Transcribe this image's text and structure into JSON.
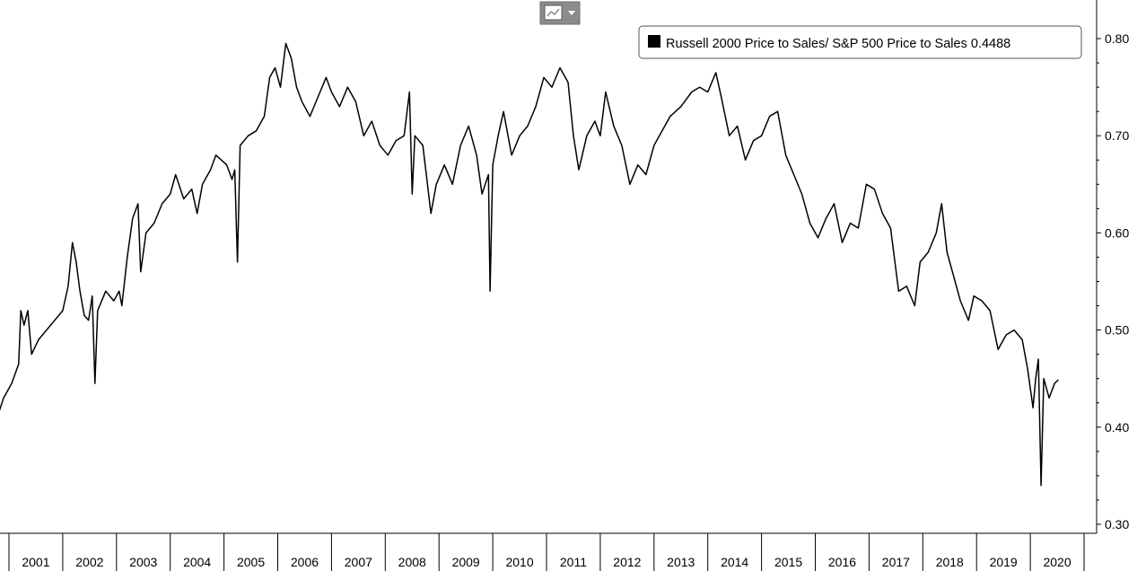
{
  "toolbar": {
    "chart_type_icon": "line-chart-icon",
    "dropdown_icon": "caret-down-icon"
  },
  "legend": {
    "label": "Russell 2000 Price to Sales/ S&P 500 Price to Sales",
    "last_value": "0.4488",
    "swatch_color": "#000000"
  },
  "chart_data": {
    "type": "line",
    "title": "",
    "xlabel": "",
    "ylabel": "",
    "x_tick_labels": [
      "2001",
      "2002",
      "2003",
      "2004",
      "2005",
      "2006",
      "2007",
      "2008",
      "2009",
      "2010",
      "2011",
      "2012",
      "2013",
      "2014",
      "2015",
      "2016",
      "2017",
      "2018",
      "2019",
      "2020"
    ],
    "y_tick_labels": [
      "0.30",
      "0.40",
      "0.50",
      "0.60",
      "0.70",
      "0.80"
    ],
    "ylim": [
      0.3,
      0.83
    ],
    "xlim": [
      2000.6,
      2020.8
    ],
    "grid": false,
    "legend_position": "top-right",
    "series": [
      {
        "name": "Russell 2000 Price to Sales/ S&P 500 Price to Sales",
        "color": "#000000",
        "points": [
          [
            2000.6,
            0.395
          ],
          [
            2000.68,
            0.385
          ],
          [
            2000.78,
            0.41
          ],
          [
            2000.9,
            0.43
          ],
          [
            2001.05,
            0.445
          ],
          [
            2001.18,
            0.465
          ],
          [
            2001.22,
            0.52
          ],
          [
            2001.28,
            0.505
          ],
          [
            2001.35,
            0.52
          ],
          [
            2001.42,
            0.475
          ],
          [
            2001.55,
            0.49
          ],
          [
            2001.7,
            0.5
          ],
          [
            2001.85,
            0.51
          ],
          [
            2002.0,
            0.52
          ],
          [
            2002.1,
            0.545
          ],
          [
            2002.18,
            0.59
          ],
          [
            2002.25,
            0.57
          ],
          [
            2002.32,
            0.54
          ],
          [
            2002.4,
            0.515
          ],
          [
            2002.48,
            0.51
          ],
          [
            2002.55,
            0.535
          ],
          [
            2002.6,
            0.445
          ],
          [
            2002.65,
            0.52
          ],
          [
            2002.8,
            0.54
          ],
          [
            2002.95,
            0.53
          ],
          [
            2003.05,
            0.54
          ],
          [
            2003.1,
            0.525
          ],
          [
            2003.2,
            0.575
          ],
          [
            2003.3,
            0.615
          ],
          [
            2003.4,
            0.63
          ],
          [
            2003.45,
            0.56
          ],
          [
            2003.55,
            0.6
          ],
          [
            2003.7,
            0.61
          ],
          [
            2003.85,
            0.63
          ],
          [
            2004.0,
            0.64
          ],
          [
            2004.1,
            0.66
          ],
          [
            2004.25,
            0.635
          ],
          [
            2004.4,
            0.645
          ],
          [
            2004.5,
            0.62
          ],
          [
            2004.6,
            0.65
          ],
          [
            2004.75,
            0.665
          ],
          [
            2004.85,
            0.68
          ],
          [
            2004.95,
            0.675
          ],
          [
            2005.05,
            0.67
          ],
          [
            2005.15,
            0.655
          ],
          [
            2005.2,
            0.665
          ],
          [
            2005.25,
            0.57
          ],
          [
            2005.3,
            0.69
          ],
          [
            2005.45,
            0.7
          ],
          [
            2005.6,
            0.705
          ],
          [
            2005.75,
            0.72
          ],
          [
            2005.85,
            0.76
          ],
          [
            2005.95,
            0.77
          ],
          [
            2006.05,
            0.75
          ],
          [
            2006.15,
            0.795
          ],
          [
            2006.25,
            0.78
          ],
          [
            2006.35,
            0.75
          ],
          [
            2006.45,
            0.735
          ],
          [
            2006.6,
            0.72
          ],
          [
            2006.75,
            0.74
          ],
          [
            2006.9,
            0.76
          ],
          [
            2007.0,
            0.745
          ],
          [
            2007.15,
            0.73
          ],
          [
            2007.3,
            0.75
          ],
          [
            2007.45,
            0.735
          ],
          [
            2007.6,
            0.7
          ],
          [
            2007.75,
            0.715
          ],
          [
            2007.9,
            0.69
          ],
          [
            2008.05,
            0.68
          ],
          [
            2008.2,
            0.695
          ],
          [
            2008.35,
            0.7
          ],
          [
            2008.45,
            0.745
          ],
          [
            2008.5,
            0.64
          ],
          [
            2008.55,
            0.7
          ],
          [
            2008.7,
            0.69
          ],
          [
            2008.85,
            0.62
          ],
          [
            2008.95,
            0.65
          ],
          [
            2009.1,
            0.67
          ],
          [
            2009.25,
            0.65
          ],
          [
            2009.4,
            0.69
          ],
          [
            2009.55,
            0.71
          ],
          [
            2009.7,
            0.68
          ],
          [
            2009.8,
            0.64
          ],
          [
            2009.92,
            0.66
          ],
          [
            2009.95,
            0.54
          ],
          [
            2010.0,
            0.67
          ],
          [
            2010.1,
            0.7
          ],
          [
            2010.2,
            0.725
          ],
          [
            2010.35,
            0.68
          ],
          [
            2010.5,
            0.7
          ],
          [
            2010.65,
            0.71
          ],
          [
            2010.8,
            0.73
          ],
          [
            2010.95,
            0.76
          ],
          [
            2011.1,
            0.75
          ],
          [
            2011.25,
            0.77
          ],
          [
            2011.4,
            0.755
          ],
          [
            2011.5,
            0.7
          ],
          [
            2011.6,
            0.665
          ],
          [
            2011.75,
            0.7
          ],
          [
            2011.9,
            0.715
          ],
          [
            2012.0,
            0.7
          ],
          [
            2012.1,
            0.745
          ],
          [
            2012.25,
            0.71
          ],
          [
            2012.4,
            0.69
          ],
          [
            2012.55,
            0.65
          ],
          [
            2012.7,
            0.67
          ],
          [
            2012.85,
            0.66
          ],
          [
            2013.0,
            0.69
          ],
          [
            2013.15,
            0.705
          ],
          [
            2013.3,
            0.72
          ],
          [
            2013.5,
            0.73
          ],
          [
            2013.7,
            0.745
          ],
          [
            2013.85,
            0.75
          ],
          [
            2014.0,
            0.745
          ],
          [
            2014.15,
            0.765
          ],
          [
            2014.25,
            0.74
          ],
          [
            2014.4,
            0.7
          ],
          [
            2014.55,
            0.71
          ],
          [
            2014.7,
            0.675
          ],
          [
            2014.85,
            0.695
          ],
          [
            2015.0,
            0.7
          ],
          [
            2015.15,
            0.72
          ],
          [
            2015.3,
            0.725
          ],
          [
            2015.45,
            0.68
          ],
          [
            2015.6,
            0.66
          ],
          [
            2015.75,
            0.64
          ],
          [
            2015.9,
            0.61
          ],
          [
            2016.05,
            0.595
          ],
          [
            2016.2,
            0.615
          ],
          [
            2016.35,
            0.63
          ],
          [
            2016.5,
            0.59
          ],
          [
            2016.65,
            0.61
          ],
          [
            2016.8,
            0.605
          ],
          [
            2016.95,
            0.65
          ],
          [
            2017.1,
            0.645
          ],
          [
            2017.25,
            0.62
          ],
          [
            2017.4,
            0.605
          ],
          [
            2017.55,
            0.54
          ],
          [
            2017.7,
            0.545
          ],
          [
            2017.85,
            0.525
          ],
          [
            2017.95,
            0.57
          ],
          [
            2018.1,
            0.58
          ],
          [
            2018.25,
            0.6
          ],
          [
            2018.35,
            0.63
          ],
          [
            2018.45,
            0.58
          ],
          [
            2018.55,
            0.56
          ],
          [
            2018.7,
            0.53
          ],
          [
            2018.85,
            0.51
          ],
          [
            2018.95,
            0.535
          ],
          [
            2019.1,
            0.53
          ],
          [
            2019.25,
            0.52
          ],
          [
            2019.4,
            0.48
          ],
          [
            2019.55,
            0.495
          ],
          [
            2019.7,
            0.5
          ],
          [
            2019.85,
            0.49
          ],
          [
            2019.95,
            0.46
          ],
          [
            2020.05,
            0.42
          ],
          [
            2020.1,
            0.45
          ],
          [
            2020.15,
            0.47
          ],
          [
            2020.2,
            0.34
          ],
          [
            2020.25,
            0.45
          ],
          [
            2020.35,
            0.43
          ],
          [
            2020.45,
            0.445
          ],
          [
            2020.52,
            0.4488
          ]
        ]
      }
    ]
  }
}
